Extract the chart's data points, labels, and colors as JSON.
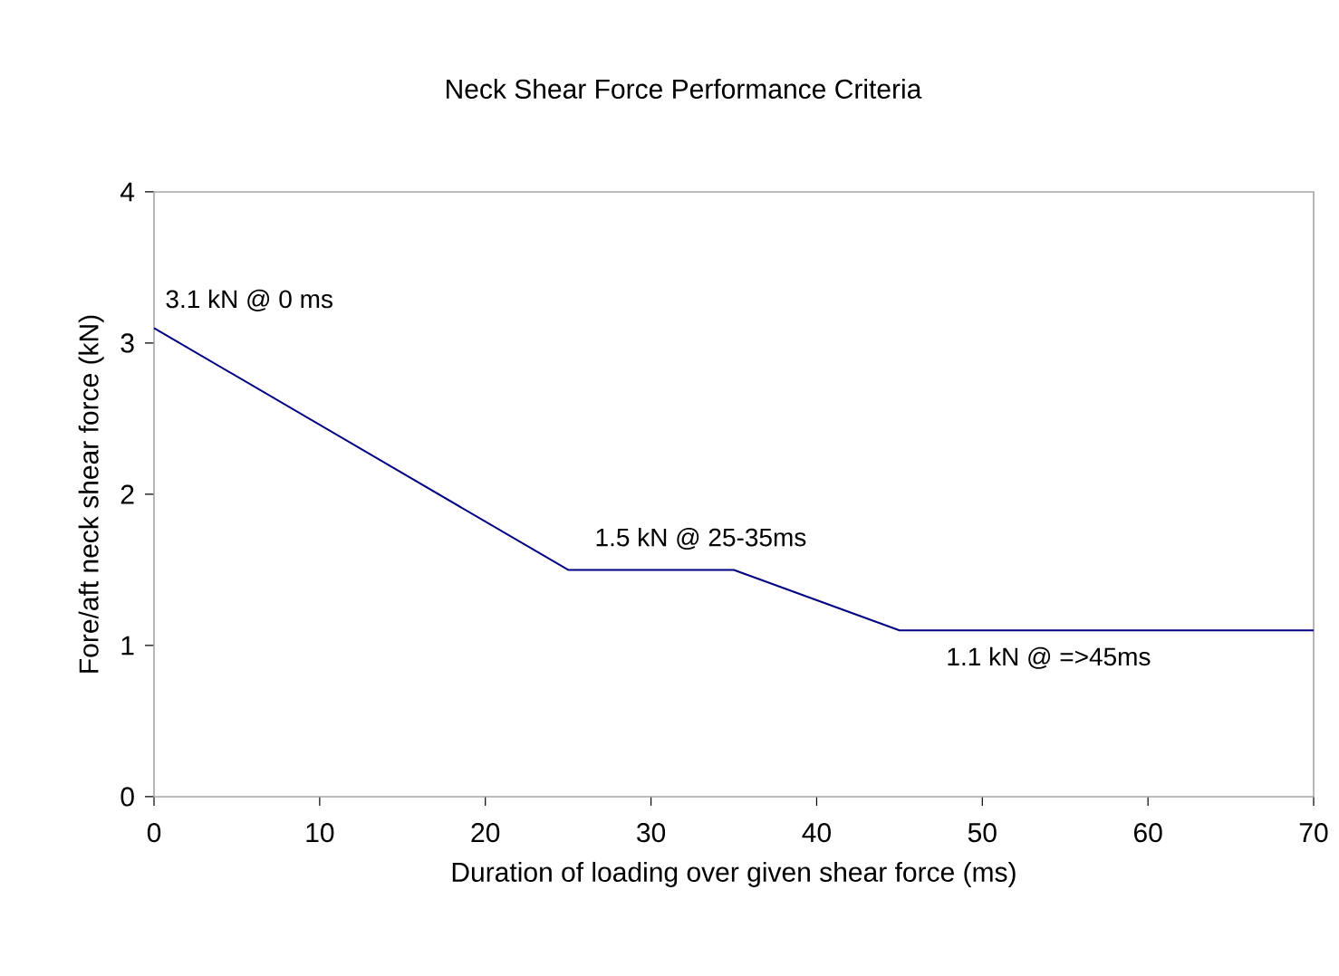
{
  "chart_data": {
    "type": "line",
    "title": "Neck Shear Force Performance Criteria",
    "xlabel": "Duration of loading over given shear force (ms)",
    "ylabel": "Fore/aft neck shear force (kN)",
    "x": [
      0,
      25,
      35,
      45,
      70
    ],
    "series": [
      {
        "color": "#000080",
        "values": [
          3.1,
          1.5,
          1.5,
          1.1,
          1.1
        ]
      }
    ],
    "xlim": [
      0,
      70
    ],
    "ylim": [
      0,
      4
    ],
    "xticks": [
      0,
      10,
      20,
      30,
      40,
      50,
      60,
      70
    ],
    "yticks": [
      0,
      1,
      2,
      3,
      4
    ],
    "grid": false,
    "marker": "none",
    "line_style": "solid",
    "annotations": [
      {
        "text": "3.1 kN @ 0 ms",
        "x": 0,
        "y": 3.1
      },
      {
        "text": "1.5 kN @ 25-35ms",
        "x": 33,
        "y": 1.5
      },
      {
        "text": "1.1 kN @ =>45ms",
        "x": 54,
        "y": 1.1
      }
    ]
  }
}
